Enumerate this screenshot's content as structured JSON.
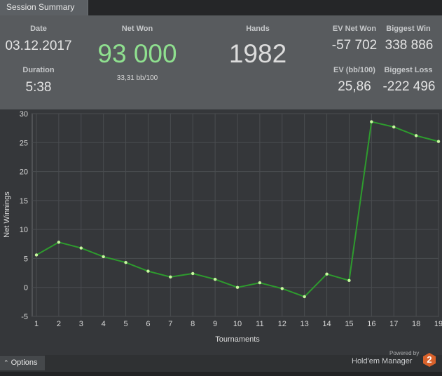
{
  "tab": {
    "label": "Session Summary"
  },
  "summary": {
    "date_label": "Date",
    "date_value": "03.12.2017",
    "duration_label": "Duration",
    "duration_value": "5:38",
    "netwon_label": "Net Won",
    "netwon_value": "93 000",
    "netwon_sub": "33,31 bb/100",
    "hands_label": "Hands",
    "hands_value": "1982",
    "ev_net_won_label": "EV Net Won",
    "ev_net_won_value": "-57 702",
    "biggest_win_label": "Biggest Win",
    "biggest_win_value": "338 886",
    "ev_bb_label": "EV (bb/100)",
    "ev_bb_value": "25,86",
    "biggest_loss_label": "Biggest Loss",
    "biggest_loss_value": "-222 496"
  },
  "colors": {
    "net_won": "#8fe08f",
    "line": "#2e9b2e",
    "point": "#c8f7a0",
    "grid": "#4a4d50"
  },
  "chart_data": {
    "type": "line",
    "xlabel": "Tournaments",
    "ylabel": "Net Winnings",
    "ylim": [
      -5,
      30
    ],
    "yticks": [
      -5,
      0,
      5,
      10,
      15,
      20,
      25,
      30
    ],
    "x": [
      1,
      2,
      3,
      4,
      5,
      6,
      7,
      8,
      9,
      10,
      11,
      12,
      13,
      14,
      15,
      16,
      17,
      18,
      19
    ],
    "series": [
      {
        "values": [
          5.6,
          7.8,
          6.8,
          5.3,
          4.3,
          2.8,
          1.8,
          2.4,
          1.4,
          0.0,
          0.8,
          -0.2,
          -1.6,
          2.3,
          1.2,
          28.6,
          27.7,
          26.2,
          25.2
        ]
      }
    ],
    "grid": true
  },
  "footer": {
    "options_label": "Options",
    "powered_label": "Powered by",
    "brand_label": "Hold'em Manager",
    "logo_text": "2"
  }
}
